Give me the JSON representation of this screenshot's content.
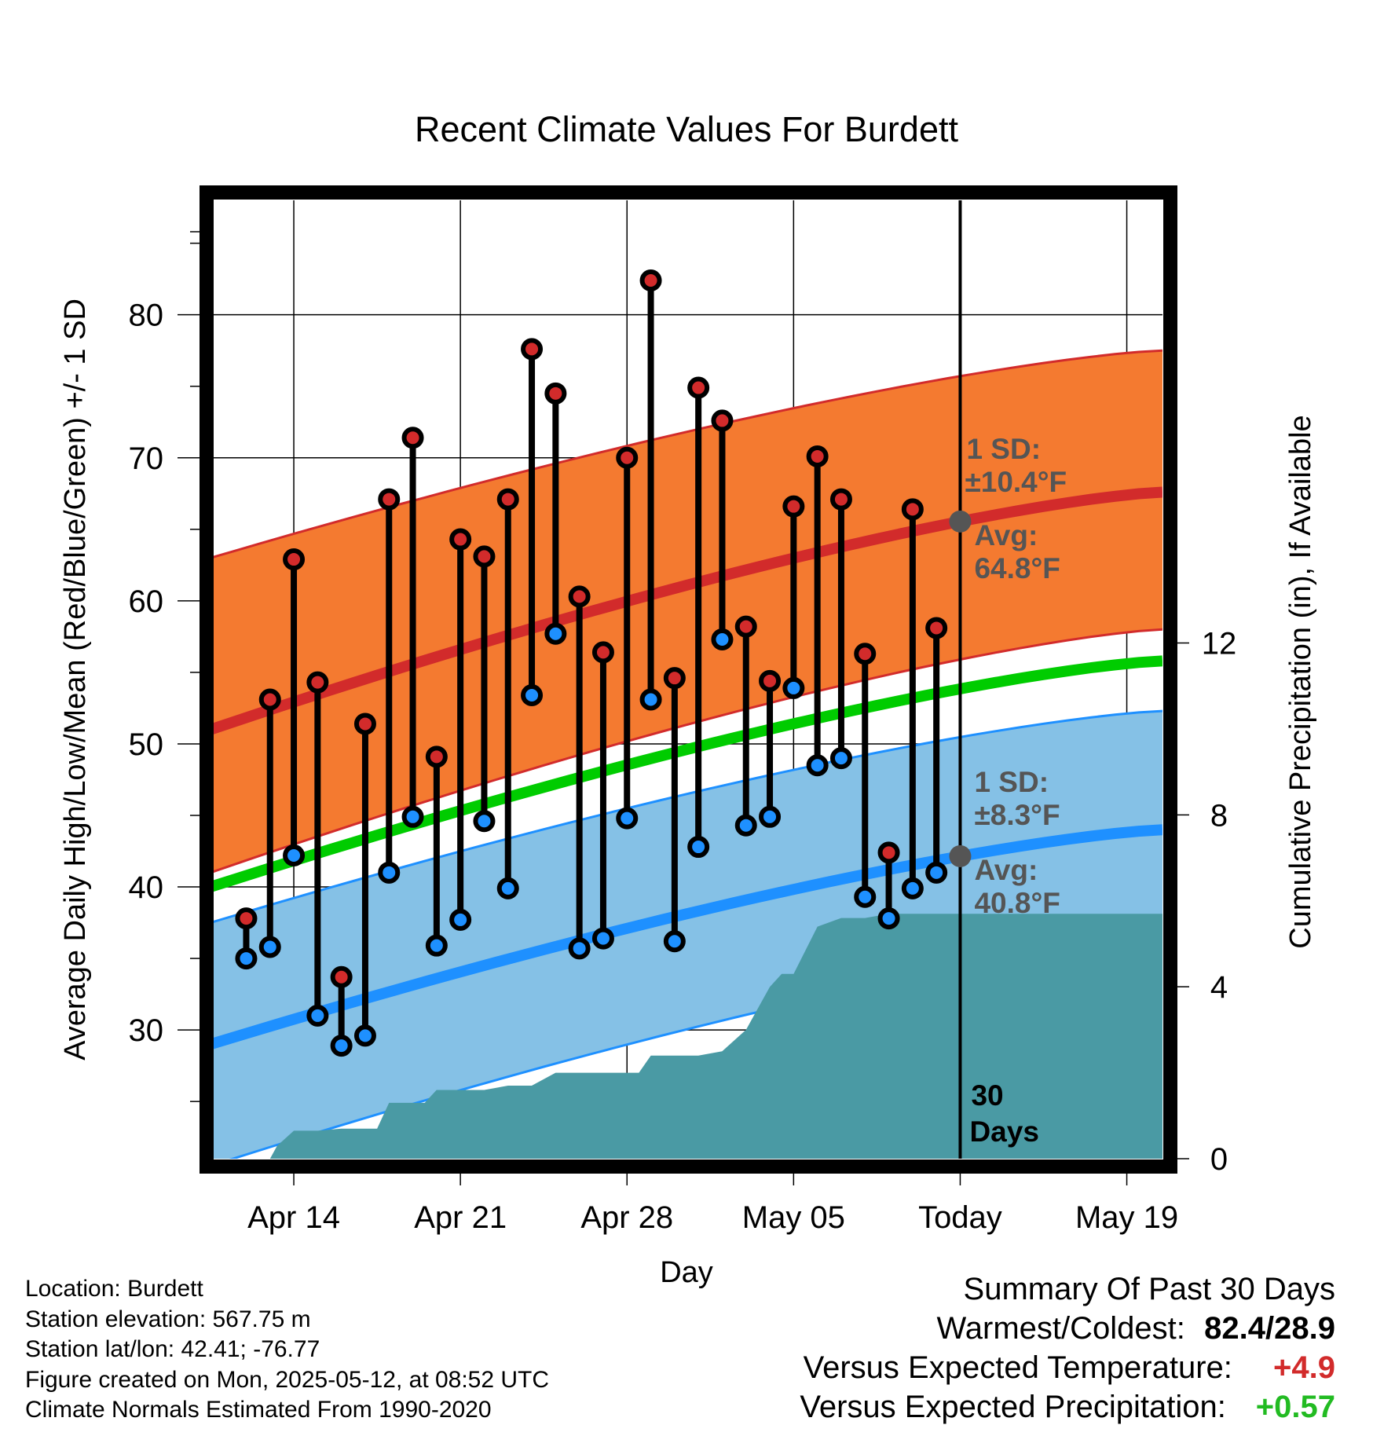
{
  "chart_data": {
    "type": "line",
    "title": "Recent Climate Values For Burdett",
    "xlabel": "Day",
    "ylabel_left": "Average Daily High/Low/Mean (Red/Blue/Green) +/- 1 SD",
    "ylabel_right": "Cumulative Precipitation (in), If Available",
    "x_tick_labels": [
      "Apr 14",
      "Apr 21",
      "Apr 28",
      "May 05",
      "Today",
      "May 19"
    ],
    "x_tick_days": [
      3,
      10,
      17,
      24,
      31,
      38
    ],
    "xlim_days": [
      -0.5,
      39.5
    ],
    "y_left_ticks": [
      30,
      40,
      50,
      60,
      70,
      80
    ],
    "ylim_left": [
      21,
      88
    ],
    "y_right_ticks": [
      0,
      4,
      8,
      12
    ],
    "ylim_right": [
      0,
      22.3
    ],
    "today_day": 31,
    "days_label_line1": "30",
    "days_label_line2": "Days",
    "normals": {
      "high_mean": {
        "start": 51.0,
        "end": 67.6,
        "color": "#d22b2b"
      },
      "high_sd_band": {
        "start_low": 41.0,
        "start_high": 63.0,
        "end_low": 58.0,
        "end_high": 77.5,
        "color": "#f47a30"
      },
      "mean": {
        "start": 40.0,
        "end": 55.8,
        "color": "#00cc00"
      },
      "low_mean": {
        "start": 29.0,
        "end": 44.0,
        "color": "#1e90ff"
      },
      "low_sd_band": {
        "start_low": 20.5,
        "start_high": 37.5,
        "end_low": 36.2,
        "end_high": 52.3,
        "color": "#85c1e6"
      }
    },
    "annotations": {
      "high_sd": "1 SD:",
      "high_sd_value": "±10.4°F",
      "high_avg": "Avg:",
      "high_avg_value": "64.8°F",
      "low_sd": "1 SD:",
      "low_sd_value": "±8.3°F",
      "low_avg": "Avg:",
      "low_avg_value": "40.8°F"
    },
    "series": [
      {
        "name": "Daily High",
        "color": "#d22b2b",
        "days": [
          1,
          2,
          3,
          4,
          5,
          6,
          7,
          8,
          9,
          10,
          11,
          12,
          13,
          14,
          15,
          16,
          17,
          18,
          19,
          20,
          21,
          22,
          23,
          24,
          25,
          26,
          27,
          28,
          29,
          30
        ],
        "values": [
          37.8,
          53.1,
          62.9,
          54.3,
          33.7,
          51.4,
          67.1,
          71.4,
          49.1,
          64.3,
          63.1,
          67.1,
          77.6,
          74.5,
          60.3,
          56.4,
          70.0,
          82.4,
          54.6,
          74.9,
          72.6,
          58.2,
          54.4,
          66.6,
          70.1,
          67.1,
          56.3,
          42.4,
          66.4,
          58.1
        ]
      },
      {
        "name": "Daily Low",
        "color": "#1e90ff",
        "days": [
          1,
          2,
          3,
          4,
          5,
          6,
          7,
          8,
          9,
          10,
          11,
          12,
          13,
          14,
          15,
          16,
          17,
          18,
          19,
          20,
          21,
          22,
          23,
          24,
          25,
          26,
          27,
          28,
          29,
          30
        ],
        "values": [
          35.0,
          35.8,
          42.2,
          31.0,
          28.9,
          29.6,
          41.0,
          44.9,
          35.9,
          37.7,
          44.6,
          39.9,
          53.4,
          57.7,
          35.7,
          36.4,
          44.8,
          53.1,
          36.2,
          42.8,
          57.3,
          44.3,
          44.9,
          53.9,
          48.5,
          49.0,
          39.3,
          37.8,
          39.9,
          41.0
        ]
      },
      {
        "name": "Cumulative Precipitation",
        "days": [
          0,
          1,
          2,
          2.3,
          3,
          4,
          5,
          6,
          6.5,
          7,
          8,
          8.5,
          9,
          10,
          11,
          12,
          13,
          14,
          15,
          16,
          17,
          17.5,
          18,
          19,
          20,
          21,
          22,
          23,
          23.5,
          24,
          25,
          26,
          27,
          28,
          29,
          30,
          31,
          32,
          33,
          34,
          35,
          36,
          37,
          38,
          39,
          39.5
        ],
        "values": [
          0,
          0,
          0,
          0.3,
          0.65,
          0.65,
          0.7,
          0.7,
          0.7,
          1.3,
          1.3,
          1.3,
          1.6,
          1.6,
          1.6,
          1.7,
          1.7,
          2.0,
          2.0,
          2.0,
          2.0,
          2.0,
          2.4,
          2.4,
          2.4,
          2.5,
          3.0,
          4.0,
          4.3,
          4.3,
          5.4,
          5.6,
          5.6,
          5.7,
          5.7,
          5.7,
          5.7,
          5.7,
          5.7,
          5.7,
          5.7,
          5.7,
          5.7,
          5.7,
          5.7,
          5.7
        ],
        "color": "#4a9aa4"
      }
    ]
  },
  "footer": {
    "location": "Location: Burdett",
    "elevation": "Station elevation: 567.75 m",
    "latlon": "Station lat/lon: 42.41; -76.77",
    "created": "Figure created on Mon, 2025-05-12, at 08:52 UTC",
    "normals": "Climate Normals Estimated From 1990-2020"
  },
  "summary": {
    "title": "Summary Of Past 30 Days",
    "warm_cold_label": "Warmest/Coldest:",
    "warm_cold_value": "82.4/28.9",
    "temp_label": "Versus Expected Temperature:",
    "temp_value": "+4.9",
    "temp_color": "#d22b2b",
    "precip_label": "Versus Expected Precipitation:",
    "precip_value": "+0.57",
    "precip_color": "#22bb22"
  }
}
